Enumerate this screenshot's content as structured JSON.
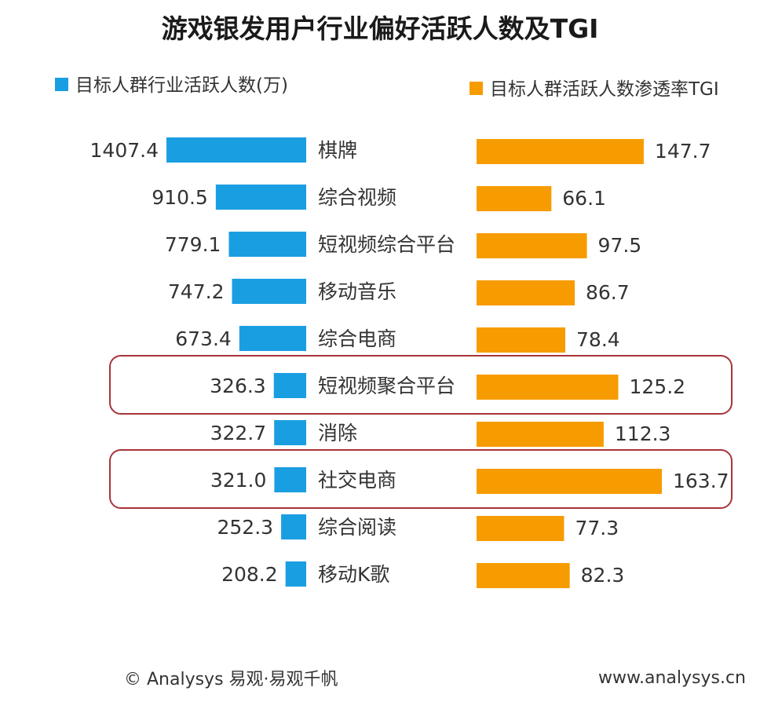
{
  "chart_data": {
    "type": "bar",
    "title": "游戏银发用户行业偏好活跃人数及TGI",
    "categories": [
      "棋牌",
      "综合视频",
      "短视频综合平台",
      "移动音乐",
      "综合电商",
      "短视频聚合平台",
      "消除",
      "社交电商",
      "综合阅读",
      "移动K歌"
    ],
    "series": [
      {
        "name": "目标人群行业活跃人数(万)",
        "color": "#1a9ee2",
        "values": [
          1407.4,
          910.5,
          779.1,
          747.2,
          673.4,
          326.3,
          322.7,
          321.0,
          252.3,
          208.2
        ],
        "labels": [
          "1407.4",
          "910.5",
          "779.1",
          "747.2",
          "673.4",
          "326.3",
          "322.7",
          "321.0",
          "252.3",
          "208.2"
        ]
      },
      {
        "name": "目标人群活跃人数渗透率TGI",
        "color": "#f79c00",
        "values": [
          147.7,
          66.1,
          97.5,
          86.7,
          78.4,
          125.2,
          112.3,
          163.7,
          77.3,
          82.3
        ],
        "labels": [
          "147.7",
          "66.1",
          "97.5",
          "86.7",
          "78.4",
          "125.2",
          "112.3",
          "163.7",
          "77.3",
          "82.3"
        ]
      }
    ],
    "highlighted_categories": [
      "短视频聚合平台",
      "社交电商"
    ],
    "legend_placement": "top",
    "grid": false
  },
  "footer": {
    "source": "© Analysys 易观·易观千帆",
    "website": "www.analysys.cn"
  }
}
